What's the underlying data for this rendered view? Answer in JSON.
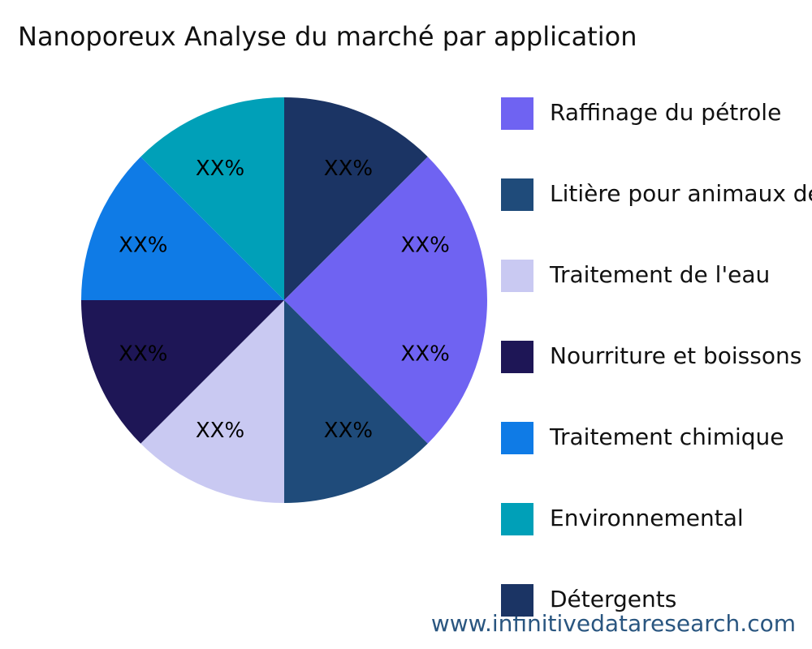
{
  "chart_data": {
    "type": "pie",
    "title": "Nanoporeux Analyse du marché par application",
    "categories": [
      "Raffinage du pétrole",
      "Litière pour animaux de compagnie",
      "Traitement de l'eau",
      "Nourriture et boissons",
      "Traitement chimique",
      "Environnemental",
      "Détergents",
      null
    ],
    "values": [
      12.5,
      12.5,
      12.5,
      12.5,
      12.5,
      12.5,
      12.5,
      12.5
    ],
    "value_labels": [
      "XX%",
      "XX%",
      "XX%",
      "XX%",
      "XX%",
      "XX%",
      "XX%",
      "XX%"
    ],
    "colors": [
      "#6f63f2",
      "#1f4b7a",
      "#c9c9f2",
      "#1e1656",
      "#0f7be6",
      "#00a0b8",
      "#1b3464",
      "#6f63f2"
    ],
    "watermark": "www.infinitivedataresearch.com"
  }
}
